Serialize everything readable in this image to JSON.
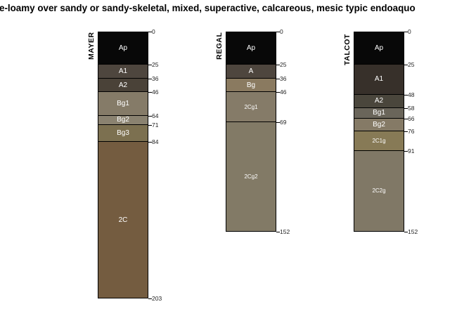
{
  "title": "e-loamy over sandy or sandy-skeletal, mixed, superactive, calcareous, mesic typic endoaquo",
  "depth_unit": "cm",
  "profiles": [
    {
      "name": "MAYER",
      "horizons": [
        {
          "label": "Ap",
          "top": 0,
          "bottom": 25,
          "color": "#080808"
        },
        {
          "label": "A1",
          "top": 25,
          "bottom": 36,
          "color": "#4e463e"
        },
        {
          "label": "A2",
          "top": 36,
          "bottom": 46,
          "color": "#4a4238"
        },
        {
          "label": "Bg1",
          "top": 46,
          "bottom": 64,
          "color": "#857b68"
        },
        {
          "label": "Bg2",
          "top": 64,
          "bottom": 71,
          "color": "#8a8270"
        },
        {
          "label": "Bg3",
          "top": 71,
          "bottom": 84,
          "color": "#7c7050"
        },
        {
          "label": "2C",
          "top": 84,
          "bottom": 203,
          "color": "#745c40"
        }
      ],
      "depth_labels": [
        "0",
        "25",
        "36",
        "46",
        "64",
        "71",
        "84",
        "203"
      ]
    },
    {
      "name": "REGAL",
      "horizons": [
        {
          "label": "Ap",
          "top": 0,
          "bottom": 25,
          "color": "#080808"
        },
        {
          "label": "A",
          "top": 25,
          "bottom": 36,
          "color": "#4e463e"
        },
        {
          "label": "Bg",
          "top": 36,
          "bottom": 46,
          "color": "#8a7a60"
        },
        {
          "label": "2Cg1",
          "top": 46,
          "bottom": 69,
          "color": "#857b68"
        },
        {
          "label": "2Cg2",
          "top": 69,
          "bottom": 152,
          "color": "#827a66"
        }
      ],
      "depth_labels": [
        "0",
        "25",
        "36",
        "46",
        "69",
        "152"
      ]
    },
    {
      "name": "TALCOT",
      "horizons": [
        {
          "label": "Ap",
          "top": 0,
          "bottom": 25,
          "color": "#080808"
        },
        {
          "label": "A1",
          "top": 25,
          "bottom": 48,
          "color": "#37302a"
        },
        {
          "label": "A2",
          "top": 48,
          "bottom": 58,
          "color": "#4a463c"
        },
        {
          "label": "Bg1",
          "top": 58,
          "bottom": 66,
          "color": "#6a655a"
        },
        {
          "label": "Bg2",
          "top": 66,
          "bottom": 76,
          "color": "#857a66"
        },
        {
          "label": "2C1g",
          "top": 76,
          "bottom": 91,
          "color": "#877a56"
        },
        {
          "label": "2C2g",
          "top": 91,
          "bottom": 152,
          "color": "#807866"
        }
      ],
      "depth_labels": [
        "0",
        "25",
        "48",
        "58",
        "66",
        "76",
        "91",
        "152"
      ]
    }
  ]
}
